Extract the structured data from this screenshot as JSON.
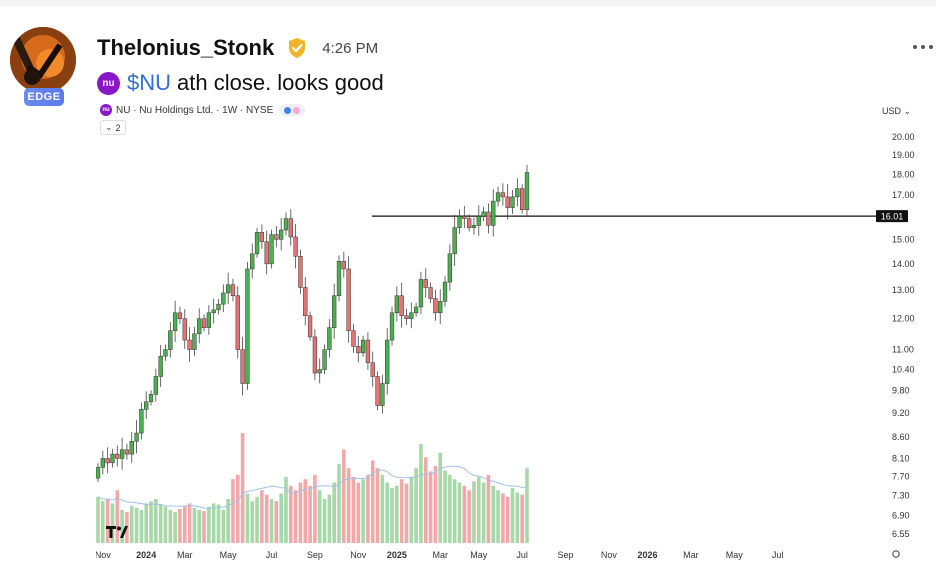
{
  "post": {
    "username": "Thelonius_Stonk",
    "badge": "EDGE",
    "time": "4:26 PM",
    "cashtag": "$NU",
    "text": "ath close. looks good",
    "logo_text": "nu"
  },
  "chart_header": {
    "symbol": "NU · Nu Holdings Ltd. · 1W · NYSE",
    "collapse_count": "2",
    "currency": "USD"
  },
  "colors": {
    "up": "#4caf50",
    "down": "#e57373",
    "vol_up": "#a6d8a8",
    "vol_down": "#f2a8a8",
    "ma_line": "#9fc3e8",
    "verified": "#f0b429",
    "brand": "#8a17c7",
    "link": "#2f6fd6"
  },
  "chart_data": {
    "type": "candlestick",
    "y_scale": "log",
    "y_ticks": [
      "20.00",
      "19.00",
      "18.00",
      "17.00",
      "16.01",
      "15.00",
      "14.00",
      "13.00",
      "12.00",
      "11.00",
      "10.40",
      "9.80",
      "9.20",
      "8.60",
      "8.10",
      "7.70",
      "7.30",
      "6.90",
      "6.55"
    ],
    "y_tick_values": [
      20.0,
      19.0,
      18.0,
      17.0,
      16.01,
      15.0,
      14.0,
      13.0,
      12.0,
      11.0,
      10.4,
      9.8,
      9.2,
      8.6,
      8.1,
      7.7,
      7.3,
      6.9,
      6.55
    ],
    "x_ticks": [
      {
        "label": "Nov",
        "bold": false,
        "week": 1
      },
      {
        "label": "2024",
        "bold": true,
        "week": 10
      },
      {
        "label": "Mar",
        "bold": false,
        "week": 18
      },
      {
        "label": "May",
        "bold": false,
        "week": 27
      },
      {
        "label": "Jul",
        "bold": false,
        "week": 36
      },
      {
        "label": "Sep",
        "bold": false,
        "week": 45
      },
      {
        "label": "Nov",
        "bold": false,
        "week": 54
      },
      {
        "label": "2025",
        "bold": true,
        "week": 62
      },
      {
        "label": "Mar",
        "bold": false,
        "week": 71
      },
      {
        "label": "May",
        "bold": false,
        "week": 79
      },
      {
        "label": "Jul",
        "bold": false,
        "week": 88
      },
      {
        "label": "Sep",
        "bold": false,
        "week": 97
      },
      {
        "label": "Nov",
        "bold": false,
        "week": 106
      },
      {
        "label": "2026",
        "bold": true,
        "week": 114
      },
      {
        "label": "Mar",
        "bold": false,
        "week": 123
      },
      {
        "label": "May",
        "bold": false,
        "week": 132
      },
      {
        "label": "Jul",
        "bold": false,
        "week": 141
      }
    ],
    "horizontal_line": 16.01,
    "close_path": [
      7.9,
      8.1,
      8.0,
      8.2,
      8.1,
      8.3,
      8.2,
      8.5,
      8.7,
      9.3,
      9.5,
      9.7,
      10.2,
      10.8,
      11.0,
      11.6,
      12.2,
      12.0,
      11.3,
      11.0,
      11.5,
      12.0,
      11.7,
      12.2,
      12.3,
      12.5,
      12.9,
      13.2,
      12.8,
      11.0,
      10.0,
      13.8,
      14.4,
      15.3,
      14.9,
      14.0,
      15.2,
      15.0,
      15.4,
      15.9,
      15.1,
      14.3,
      13.1,
      12.1,
      11.4,
      10.3,
      10.4,
      11.0,
      11.7,
      12.8,
      14.1,
      13.8,
      11.6,
      11.1,
      10.9,
      11.3,
      10.6,
      10.2,
      9.4,
      10.0,
      11.3,
      12.2,
      12.8,
      12.1,
      12.0,
      12.2,
      12.4,
      13.4,
      13.1,
      12.7,
      12.2,
      12.6,
      13.3,
      14.4,
      15.5,
      16.0,
      15.9,
      15.5,
      15.6,
      16.0,
      16.2,
      15.6,
      16.7,
      17.1,
      16.9,
      16.4,
      16.9,
      17.3,
      16.3,
      18.1
    ],
    "volume": [
      42,
      38,
      40,
      36,
      48,
      30,
      28,
      34,
      32,
      30,
      36,
      38,
      40,
      35,
      33,
      30,
      28,
      31,
      34,
      36,
      32,
      30,
      29,
      33,
      36,
      35,
      30,
      40,
      58,
      62,
      100,
      45,
      38,
      42,
      48,
      44,
      40,
      38,
      45,
      60,
      52,
      48,
      55,
      58,
      52,
      62,
      48,
      40,
      44,
      55,
      72,
      85,
      68,
      60,
      55,
      58,
      62,
      75,
      68,
      62,
      55,
      50,
      52,
      58,
      54,
      60,
      68,
      90,
      78,
      65,
      70,
      82,
      66,
      62,
      58,
      55,
      52,
      48,
      56,
      60,
      55,
      62,
      52,
      48,
      45,
      42,
      50,
      46,
      44,
      68
    ]
  }
}
